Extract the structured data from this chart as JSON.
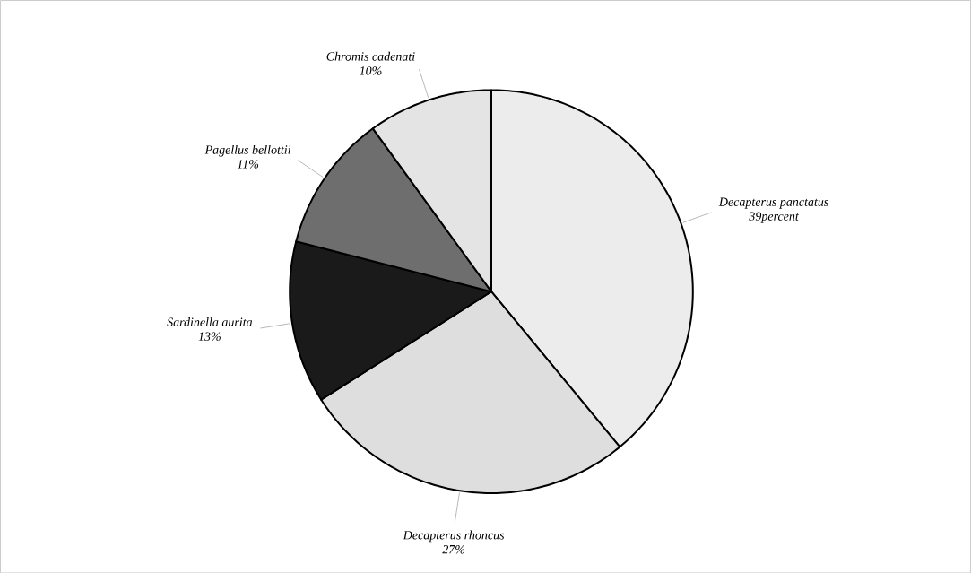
{
  "chart_data": {
    "type": "pie",
    "categories": [
      "Decapterus panctatus",
      "Decapterus rhoncus",
      "Sardinella aurita",
      "Pagellus bellottii",
      "Chromis cadenati"
    ],
    "values": [
      39,
      27,
      13,
      11,
      10
    ],
    "value_labels": [
      "39percent",
      "27%",
      "13%",
      "11%",
      "10%"
    ],
    "colors": [
      "#ececec",
      "#dedede",
      "#1a1a1a",
      "#6e6e6e",
      "#e4e4e4"
    ]
  }
}
